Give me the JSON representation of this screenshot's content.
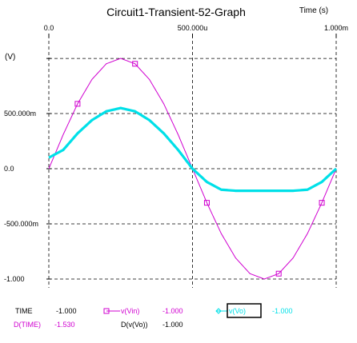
{
  "window": {
    "title": "Circuit1-Transient-52-Graph",
    "x_unit_label": "Time   (s)",
    "y_unit_label": "(V)"
  },
  "chart_data": {
    "type": "line",
    "title": "Circuit1-Transient-52-Graph",
    "xlabel": "Time   (s)",
    "ylabel": "(V)",
    "xlim": [
      0,
      0.001
    ],
    "ylim": [
      -1.1,
      1.0
    ],
    "x_tick_labels": [
      "0.0",
      "500.000u",
      "1.000m"
    ],
    "x_ticks": [
      0,
      0.0005,
      0.001
    ],
    "y_tick_labels": [
      "500.000m",
      "0.0",
      "-500.000m",
      "-1.000"
    ],
    "y_ticks": [
      0.5,
      0,
      -0.5,
      -1.0
    ],
    "grid": true,
    "x": [
      0,
      5e-05,
      0.0001,
      0.00015,
      0.0002,
      0.00025,
      0.0003,
      0.00035,
      0.0004,
      0.00045,
      0.0005,
      0.00055,
      0.0006,
      0.00065,
      0.0007,
      0.00075,
      0.0008,
      0.00085,
      0.0009,
      0.00095,
      0.001
    ],
    "series": [
      {
        "name": "v(Vin)",
        "color": "#d000d0",
        "marker": "square",
        "values": [
          0,
          0.309,
          0.588,
          0.809,
          0.951,
          1.0,
          0.951,
          0.809,
          0.588,
          0.309,
          0,
          -0.309,
          -0.588,
          -0.809,
          -0.951,
          -1.0,
          -0.951,
          -0.809,
          -0.588,
          -0.309,
          0
        ]
      },
      {
        "name": "v(Vo)",
        "color": "#00e0e8",
        "marker": "diamond",
        "values": [
          0.1,
          0.17,
          0.32,
          0.44,
          0.52,
          0.55,
          0.52,
          0.44,
          0.32,
          0.17,
          0,
          -0.12,
          -0.19,
          -0.2,
          -0.2,
          -0.2,
          -0.2,
          -0.2,
          -0.19,
          -0.12,
          0
        ]
      }
    ],
    "readout": {
      "time_label": "TIME",
      "time_value": "-1.000",
      "dtime_label": "D(TIME)",
      "dtime_value": "-1.530",
      "vin_label": "v(Vin)",
      "vin_value": "-1.000",
      "vo_label": "v(Vo)",
      "vo_value": "-1.000",
      "dvo_label": "D(v(Vo))",
      "dvo_value": "-1.000"
    }
  }
}
